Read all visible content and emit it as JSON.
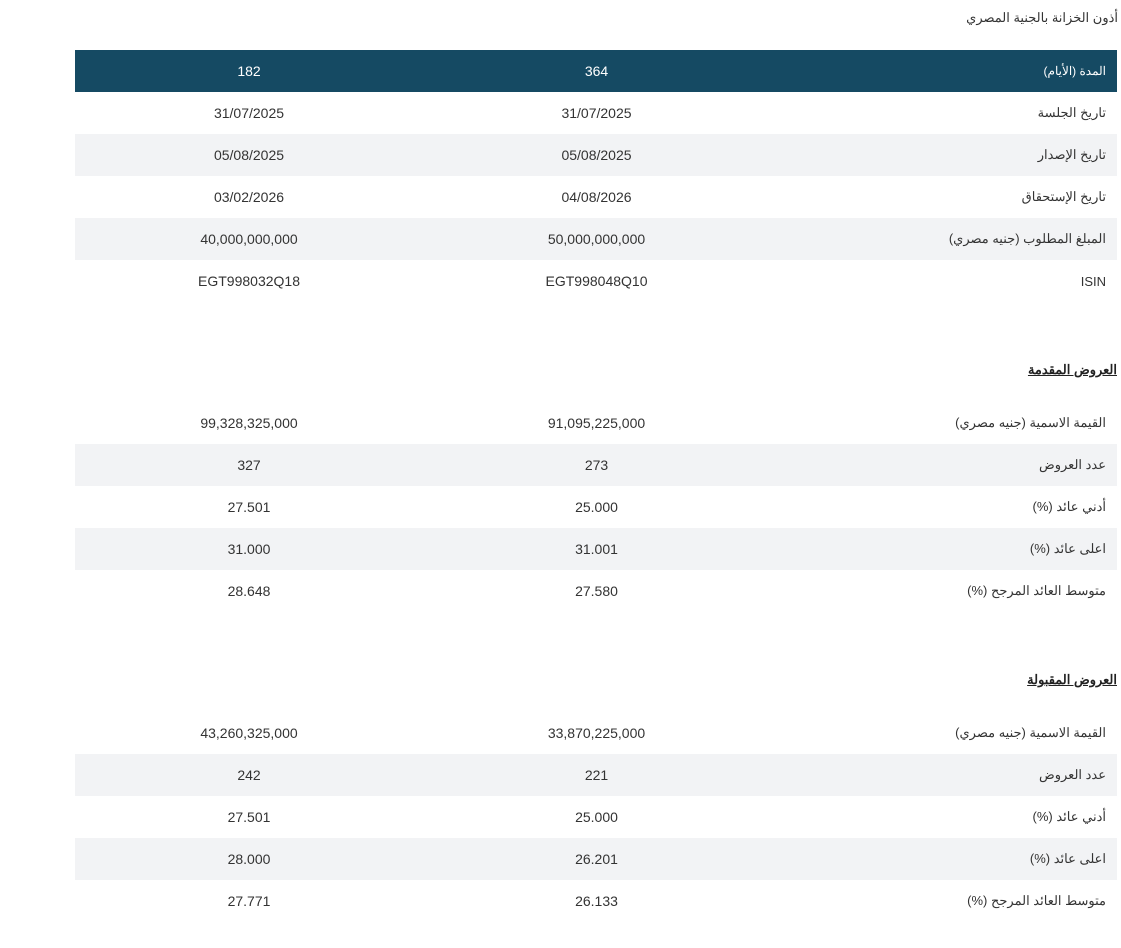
{
  "page_title": "أذون الخزانة بالجنية المصري",
  "main_table": {
    "header": {
      "label": "المدة (الأيام)",
      "col_364": "364",
      "col_182": "182"
    },
    "rows": [
      {
        "label": "تاريخ الجلسة",
        "v364": "31/07/2025",
        "v182": "31/07/2025"
      },
      {
        "label": "تاريخ الإصدار",
        "v364": "05/08/2025",
        "v182": "05/08/2025"
      },
      {
        "label": "تاريخ الإستحقاق",
        "v364": "04/08/2026",
        "v182": "03/02/2026"
      },
      {
        "label": "المبلغ المطلوب (جنيه مصري)",
        "v364": "50,000,000,000",
        "v182": "40,000,000,000"
      },
      {
        "label": "ISIN",
        "v364": "EGT998048Q10",
        "v182": "EGT998032Q18"
      }
    ]
  },
  "offered": {
    "title": "العروض المقدمة",
    "rows": [
      {
        "label": "القيمة الاسمية (جنيه مصري)",
        "v364": "91,095,225,000",
        "v182": "99,328,325,000"
      },
      {
        "label": "عدد العروض",
        "v364": "273",
        "v182": "327"
      },
      {
        "label": "أدني عائد (%)",
        "v364": "25.000",
        "v182": "27.501"
      },
      {
        "label": "اعلى عائد (%)",
        "v364": "31.001",
        "v182": "31.000"
      },
      {
        "label": "متوسط العائد المرجح (%)",
        "v364": "27.580",
        "v182": "28.648"
      }
    ]
  },
  "accepted": {
    "title": "العروض المقبولة",
    "rows": [
      {
        "label": "القيمة الاسمية (جنيه مصري)",
        "v364": "33,870,225,000",
        "v182": "43,260,325,000"
      },
      {
        "label": "عدد العروض",
        "v364": "221",
        "v182": "242"
      },
      {
        "label": "أدني عائد (%)",
        "v364": "25.000",
        "v182": "27.501"
      },
      {
        "label": "اعلى عائد (%)",
        "v364": "26.201",
        "v182": "28.000"
      },
      {
        "label": "متوسط العائد المرجح (%)",
        "v364": "26.133",
        "v182": "27.771"
      }
    ]
  },
  "colors": {
    "header_bg": "#154a63",
    "row_shade": "#f2f3f5"
  }
}
